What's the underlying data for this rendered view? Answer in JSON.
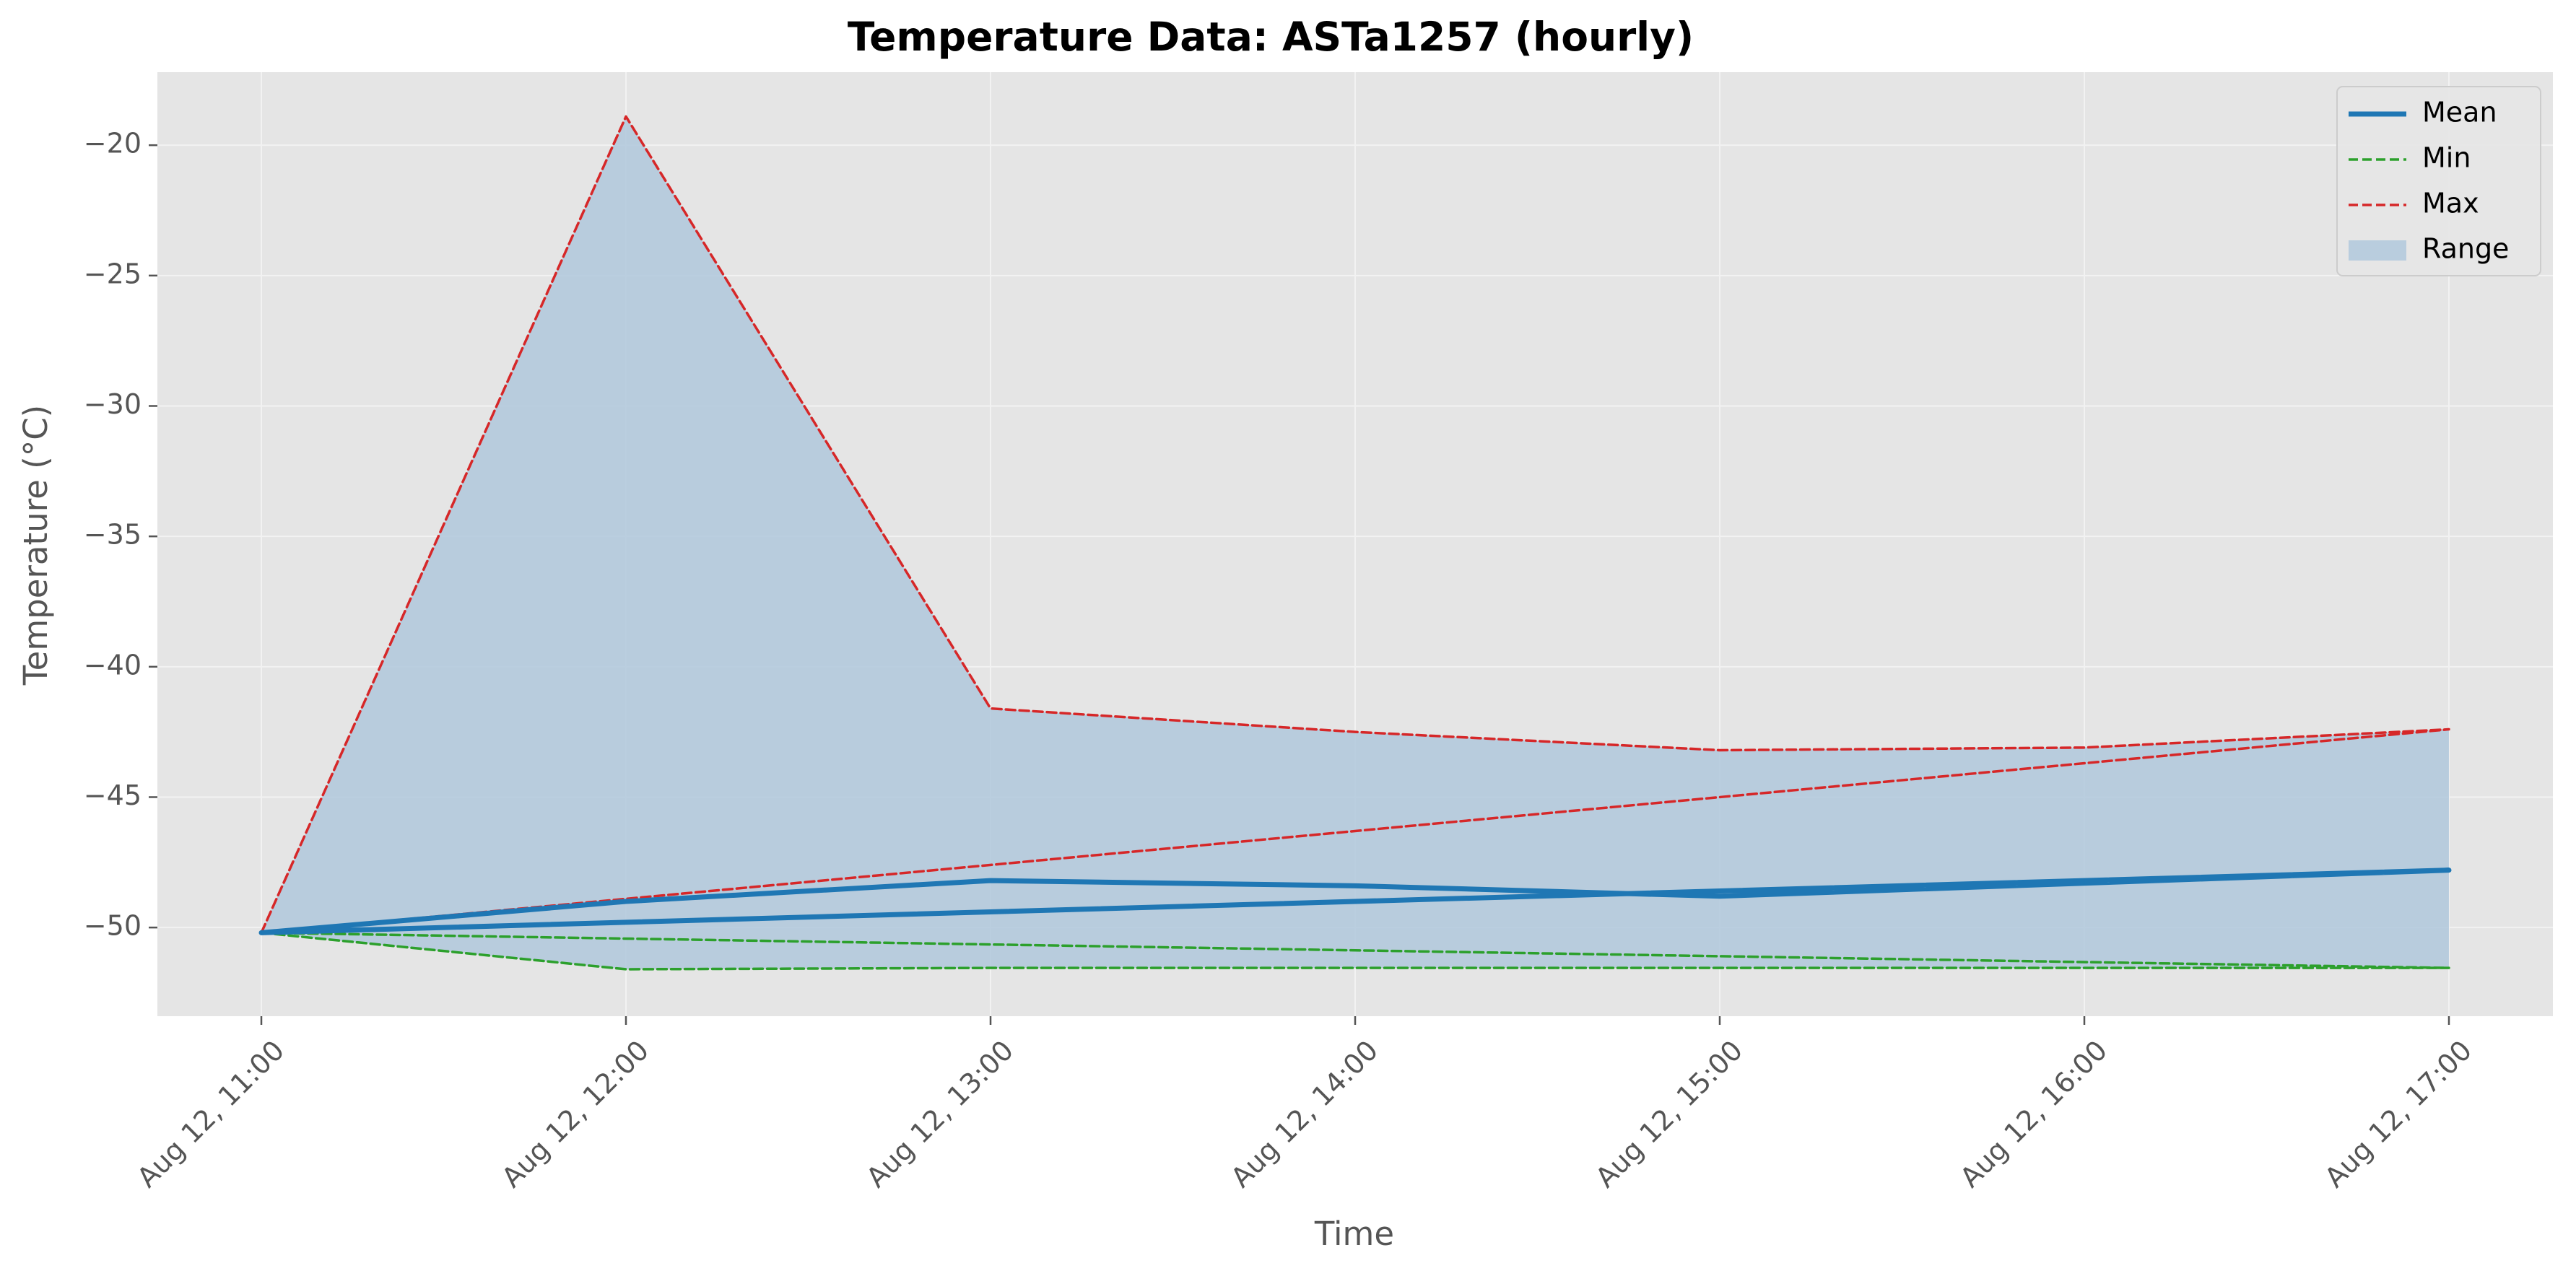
{
  "chart_data": {
    "type": "line",
    "title": "Temperature Data: ASTa1257 (hourly)",
    "xlabel": "Time",
    "ylabel": "Temperature (°C)",
    "ylim": [
      -53.4,
      -17.2
    ],
    "yticks": [
      -50,
      -45,
      -40,
      -35,
      -30,
      -25,
      -20
    ],
    "ytick_labels": [
      "−50",
      "−45",
      "−40",
      "−35",
      "−30",
      "−25",
      "−20"
    ],
    "x_ticks": [
      "Aug 12, 11:00",
      "Aug 12, 12:00",
      "Aug 12, 13:00",
      "Aug 12, 14:00",
      "Aug 12, 15:00",
      "Aug 12, 16:00",
      "Aug 12, 17:00"
    ],
    "grid": true,
    "legend_position": "top-right",
    "series": [
      {
        "name": "Mean",
        "style": "solid",
        "color": "#1f77b4",
        "points": [
          {
            "x": "Aug 12, 11:00",
            "y": -50.2
          },
          {
            "x": "Aug 12, 12:00",
            "y": -49.0
          },
          {
            "x": "Aug 12, 13:00",
            "y": -48.2
          },
          {
            "x": "Aug 12, 14:00",
            "y": -48.4
          },
          {
            "x": "Aug 12, 15:00",
            "y": -48.8
          },
          {
            "x": "Aug 12, 17:00",
            "y": -47.8
          },
          {
            "x": "Aug 12, 11:00",
            "y": -50.2
          }
        ]
      },
      {
        "name": "Min",
        "style": "dashed",
        "color": "#2ca02c",
        "points": [
          {
            "x": "Aug 12, 11:00",
            "y": -50.2
          },
          {
            "x": "Aug 12, 12:00",
            "y": -51.6
          },
          {
            "x": "Aug 12, 13:00",
            "y": -51.55
          },
          {
            "x": "Aug 12, 15:00",
            "y": -51.55
          },
          {
            "x": "Aug 12, 16:00",
            "y": -51.55
          },
          {
            "x": "Aug 12, 17:00",
            "y": -51.55
          },
          {
            "x": "Aug 12, 11:00",
            "y": -50.2
          }
        ]
      },
      {
        "name": "Max",
        "style": "dashed",
        "color": "#d62728",
        "points": [
          {
            "x": "Aug 12, 11:00",
            "y": -50.2
          },
          {
            "x": "Aug 12, 12:00",
            "y": -18.9
          },
          {
            "x": "Aug 12, 13:00",
            "y": -41.6
          },
          {
            "x": "Aug 12, 14:00",
            "y": -42.5
          },
          {
            "x": "Aug 12, 15:00",
            "y": -43.2
          },
          {
            "x": "Aug 12, 16:00",
            "y": -43.1
          },
          {
            "x": "Aug 12, 17:00",
            "y": -42.4
          },
          {
            "x": "Aug 12, 11:00",
            "y": -50.2
          }
        ]
      },
      {
        "name": "Range",
        "style": "fill",
        "color": "#b0c8dc",
        "upper_points": [
          {
            "x": "Aug 12, 11:00",
            "y": -50.2
          },
          {
            "x": "Aug 12, 12:00",
            "y": -18.9
          },
          {
            "x": "Aug 12, 13:00",
            "y": -41.6
          },
          {
            "x": "Aug 12, 14:00",
            "y": -42.5
          },
          {
            "x": "Aug 12, 15:00",
            "y": -43.2
          },
          {
            "x": "Aug 12, 16:00",
            "y": -43.1
          },
          {
            "x": "Aug 12, 17:00",
            "y": -42.4
          }
        ],
        "lower_points": [
          {
            "x": "Aug 12, 11:00",
            "y": -50.2
          },
          {
            "x": "Aug 12, 12:00",
            "y": -51.6
          },
          {
            "x": "Aug 12, 13:00",
            "y": -51.55
          },
          {
            "x": "Aug 12, 15:00",
            "y": -51.55
          },
          {
            "x": "Aug 12, 17:00",
            "y": -51.55
          }
        ]
      }
    ]
  },
  "colors": {
    "plot_background": "#e5e5e5",
    "grid": "#f2f2f2",
    "tick_mark": "#555555"
  }
}
